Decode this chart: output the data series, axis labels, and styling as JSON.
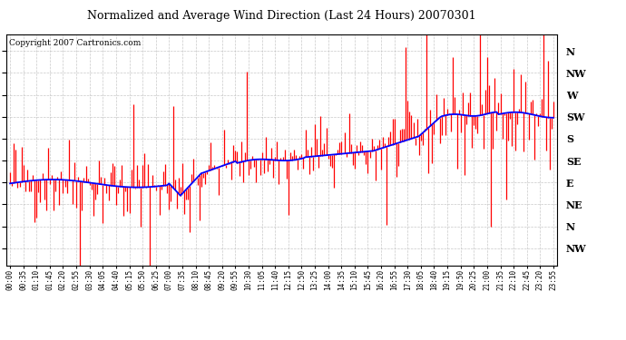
{
  "title": "Normalized and Average Wind Direction (Last 24 Hours) 20070301",
  "copyright": "Copyright 2007 Cartronics.com",
  "background_color": "#ffffff",
  "plot_background": "#ffffff",
  "grid_color": "#bbbbbb",
  "bar_color": "#ff0000",
  "line_color": "#0000ff",
  "ytick_labels": [
    "N",
    "NW",
    "W",
    "SW",
    "S",
    "SE",
    "E",
    "NE",
    "N",
    "NW"
  ],
  "ytick_values": [
    360,
    315,
    270,
    225,
    180,
    135,
    90,
    45,
    0,
    -45
  ],
  "ylim_top": 395,
  "ylim_bottom": -80,
  "time_step_minutes": 5,
  "num_points": 288,
  "xtick_step": 7,
  "title_fontsize": 9,
  "copyright_fontsize": 6.5,
  "ytick_fontsize": 8,
  "xtick_fontsize": 5.5
}
